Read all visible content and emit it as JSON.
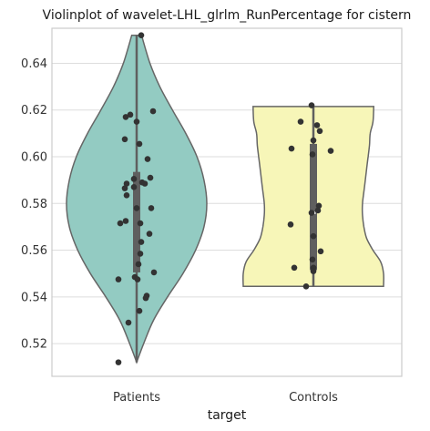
{
  "chart_data": {
    "type": "violin",
    "title": "Violinplot of wavelet-LHL_glrlm_RunPercentage for cistern",
    "xlabel": "target",
    "ylabel": "",
    "ylim": [
      0.506,
      0.655
    ],
    "yticks": [
      0.52,
      0.54,
      0.56,
      0.58,
      0.6,
      0.62,
      0.64
    ],
    "ytick_labels": [
      "0.52",
      "0.54",
      "0.56",
      "0.58",
      "0.60",
      "0.62",
      "0.64"
    ],
    "grid": "horizontal",
    "categories": [
      "Patients",
      "Controls"
    ],
    "series": [
      {
        "category": "Patients",
        "color": "#93cbc2",
        "min": 0.512,
        "max": 0.652,
        "q1": 0.5505,
        "median": 0.578,
        "q3": 0.5935,
        "density": [
          [
            0.512,
            0.0
          ],
          [
            0.52,
            0.1
          ],
          [
            0.53,
            0.24
          ],
          [
            0.54,
            0.44
          ],
          [
            0.55,
            0.66
          ],
          [
            0.56,
            0.84
          ],
          [
            0.57,
            0.96
          ],
          [
            0.58,
            1.0
          ],
          [
            0.59,
            0.96
          ],
          [
            0.6,
            0.86
          ],
          [
            0.61,
            0.7
          ],
          [
            0.62,
            0.51
          ],
          [
            0.63,
            0.33
          ],
          [
            0.64,
            0.19
          ],
          [
            0.652,
            0.07
          ]
        ],
        "points": [
          [
            0.05,
            0.652
          ],
          [
            -0.07,
            0.618
          ],
          [
            -0.12,
            0.617
          ],
          [
            0.18,
            0.6195
          ],
          [
            0.0,
            0.615
          ],
          [
            -0.13,
            0.6075
          ],
          [
            0.03,
            0.6055
          ],
          [
            0.12,
            0.599
          ],
          [
            0.15,
            0.591
          ],
          [
            -0.03,
            0.5905
          ],
          [
            0.06,
            0.589
          ],
          [
            -0.11,
            0.5885
          ],
          [
            0.09,
            0.5885
          ],
          [
            -0.13,
            0.5865
          ],
          [
            -0.03,
            0.587
          ],
          [
            -0.11,
            0.5835
          ],
          [
            0.0,
            0.578
          ],
          [
            0.16,
            0.578
          ],
          [
            -0.12,
            0.5725
          ],
          [
            -0.18,
            0.5715
          ],
          [
            0.04,
            0.5715
          ],
          [
            0.14,
            0.567
          ],
          [
            0.05,
            0.5635
          ],
          [
            0.04,
            0.5585
          ],
          [
            0.02,
            0.554
          ],
          [
            0.19,
            0.5505
          ],
          [
            -0.02,
            0.5485
          ],
          [
            -0.2,
            0.5475
          ],
          [
            0.01,
            0.5475
          ],
          [
            0.11,
            0.5405
          ],
          [
            0.1,
            0.5395
          ],
          [
            0.03,
            0.534
          ],
          [
            -0.09,
            0.529
          ],
          [
            -0.2,
            0.512
          ]
        ]
      },
      {
        "category": "Controls",
        "color": "#f7f6b8",
        "min": 0.5445,
        "max": 0.6215,
        "q1": 0.5515,
        "median": 0.576,
        "q3": 0.6055,
        "density": [
          [
            0.5445,
            1.0
          ],
          [
            0.55,
            1.0
          ],
          [
            0.555,
            0.96
          ],
          [
            0.56,
            0.85
          ],
          [
            0.565,
            0.76
          ],
          [
            0.57,
            0.72
          ],
          [
            0.575,
            0.7
          ],
          [
            0.58,
            0.7
          ],
          [
            0.585,
            0.72
          ],
          [
            0.59,
            0.74
          ],
          [
            0.595,
            0.76
          ],
          [
            0.6,
            0.78
          ],
          [
            0.605,
            0.8
          ],
          [
            0.61,
            0.81
          ],
          [
            0.615,
            0.85
          ],
          [
            0.6215,
            0.86
          ]
        ],
        "points": [
          [
            -0.02,
            0.622
          ],
          [
            -0.14,
            0.615
          ],
          [
            0.04,
            0.6135
          ],
          [
            0.07,
            0.611
          ],
          [
            0.0,
            0.607
          ],
          [
            -0.24,
            0.6035
          ],
          [
            0.19,
            0.6025
          ],
          [
            -0.01,
            0.601
          ],
          [
            0.06,
            0.579
          ],
          [
            0.05,
            0.577
          ],
          [
            -0.02,
            0.576
          ],
          [
            -0.25,
            0.571
          ],
          [
            0.0,
            0.566
          ],
          [
            0.08,
            0.5595
          ],
          [
            -0.01,
            0.556
          ],
          [
            -0.21,
            0.5525
          ],
          [
            0.0,
            0.5525
          ],
          [
            0.0,
            0.551
          ],
          [
            -0.08,
            0.5445
          ]
        ]
      }
    ]
  }
}
